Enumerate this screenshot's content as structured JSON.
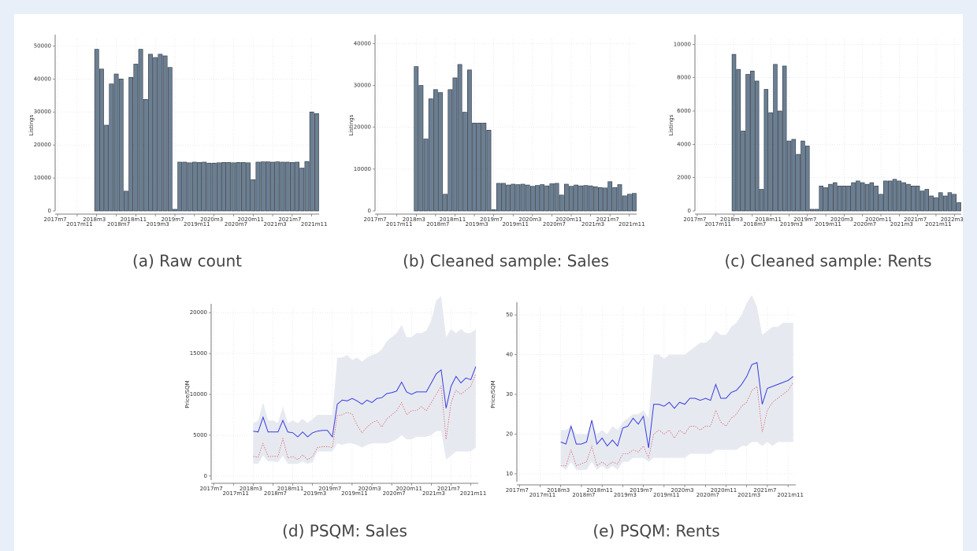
{
  "chart_data": [
    {
      "type": "bar",
      "caption": "(a) Raw count",
      "ylabel": "Listings",
      "color": "#6b7f93",
      "grid": true,
      "categories": [
        "2017m7",
        null,
        null,
        null,
        "2017m11",
        null,
        null,
        null,
        "2018m3",
        null,
        null,
        null,
        "2018m7",
        null,
        null,
        null,
        "2018m11",
        null,
        null,
        null,
        "2019m3",
        null,
        null,
        null,
        "2019m7",
        null,
        null,
        null,
        "2019m11",
        null,
        null,
        null,
        "2020m3",
        null,
        null,
        null,
        "2020m7",
        null,
        null,
        null,
        "2020m11",
        null,
        null,
        null,
        "2021m3",
        null,
        null,
        null,
        "2021m7",
        null,
        null,
        null,
        "2021m11",
        null
      ],
      "values": [
        null,
        null,
        null,
        null,
        null,
        null,
        null,
        null,
        49000,
        43000,
        26000,
        38500,
        41500,
        40000,
        6000,
        40500,
        44500,
        49000,
        33800,
        47500,
        46500,
        47500,
        47000,
        43500,
        500,
        14800,
        14800,
        14600,
        14800,
        14700,
        14800,
        14500,
        14500,
        14600,
        14700,
        14700,
        14600,
        14700,
        14700,
        14600,
        9500,
        14800,
        14900,
        14900,
        14800,
        14900,
        14800,
        14800,
        14700,
        14800,
        13000,
        15000,
        30000,
        29500
      ],
      "ylim": [
        0,
        52000
      ],
      "yticks": [
        0,
        10000,
        20000,
        30000,
        40000,
        50000
      ]
    },
    {
      "type": "bar",
      "caption": "(b) Cleaned sample: Sales",
      "ylabel": "Listings",
      "color": "#6b7f93",
      "grid": true,
      "categories": [
        "2017m7",
        null,
        null,
        null,
        "2017m11",
        null,
        null,
        null,
        "2018m3",
        null,
        null,
        null,
        "2018m7",
        null,
        null,
        null,
        "2018m11",
        null,
        null,
        null,
        "2019m3",
        null,
        null,
        null,
        "2019m7",
        null,
        null,
        null,
        "2019m11",
        null,
        null,
        null,
        "2020m3",
        null,
        null,
        null,
        "2020m7",
        null,
        null,
        null,
        "2020m11",
        null,
        null,
        null,
        "2021m3",
        null,
        null,
        null,
        "2021m7",
        null,
        null,
        null,
        "2021m11",
        null
      ],
      "values": [
        null,
        null,
        null,
        null,
        null,
        null,
        null,
        null,
        34500,
        30000,
        17200,
        26800,
        29000,
        28300,
        4000,
        29000,
        31800,
        35000,
        23600,
        33700,
        21000,
        21000,
        21000,
        19300,
        300,
        6600,
        6600,
        6200,
        6400,
        6300,
        6400,
        6200,
        5900,
        6100,
        6300,
        6000,
        6500,
        6600,
        3800,
        6400,
        5900,
        6200,
        6000,
        6100,
        6000,
        5800,
        5600,
        5500,
        7000,
        5600,
        6300,
        3600,
        4000,
        4200
      ],
      "ylim": [
        0,
        41000
      ],
      "yticks": [
        0,
        10000,
        20000,
        30000,
        40000
      ]
    },
    {
      "type": "bar",
      "caption": "(c) Cleaned sample: Rents",
      "ylabel": "Listings",
      "color": "#6b7f93",
      "grid": true,
      "categories": [
        "2017m7",
        null,
        null,
        null,
        "2017m11",
        null,
        null,
        null,
        "2018m3",
        null,
        null,
        null,
        "2018m7",
        null,
        null,
        null,
        "2018m11",
        null,
        null,
        null,
        "2019m3",
        null,
        null,
        null,
        "2019m7",
        null,
        null,
        null,
        "2019m11",
        null,
        null,
        null,
        "2020m3",
        null,
        null,
        null,
        "2020m7",
        null,
        null,
        null,
        "2020m11",
        null,
        null,
        null,
        "2021m3",
        null,
        null,
        null,
        "2021m7",
        null,
        null,
        null,
        "2021m11",
        null,
        null,
        null,
        "2022m3",
        null
      ],
      "values": [
        null,
        null,
        null,
        null,
        null,
        null,
        null,
        null,
        9400,
        8500,
        4800,
        8200,
        8400,
        7800,
        1300,
        7300,
        5900,
        8800,
        6000,
        8700,
        4200,
        4300,
        3400,
        4200,
        3900,
        100,
        100,
        1500,
        1400,
        1600,
        1700,
        1500,
        1500,
        1500,
        1700,
        1800,
        1700,
        1600,
        1700,
        1500,
        1000,
        1800,
        1800,
        1900,
        1800,
        1700,
        1600,
        1500,
        1500,
        1200,
        1300,
        900,
        800,
        1100,
        900,
        1100,
        1000,
        500
      ],
      "ylim": [
        0,
        10300
      ],
      "yticks": [
        0,
        2000,
        4000,
        6000,
        8000,
        10000
      ]
    },
    {
      "type": "line",
      "caption": "(d) PSQM: Sales",
      "ylabel": "Price/SQM",
      "grid": true,
      "categories": [
        "2017m7",
        null,
        null,
        null,
        "2017m11",
        null,
        null,
        null,
        "2018m3",
        null,
        null,
        null,
        "2018m7",
        null,
        null,
        null,
        "2018m11",
        null,
        null,
        null,
        "2019m3",
        null,
        null,
        null,
        "2019m7",
        null,
        null,
        null,
        "2019m11",
        null,
        null,
        null,
        "2020m3",
        null,
        null,
        null,
        "2020m7",
        null,
        null,
        null,
        "2020m11",
        null,
        null,
        null,
        "2021m3",
        null,
        null,
        null,
        "2021m7",
        null,
        null,
        null,
        "2021m11",
        null
      ],
      "band": {
        "color": "#e6eaf0",
        "upper": [
          null,
          null,
          null,
          null,
          null,
          null,
          null,
          null,
          6500,
          6800,
          9000,
          6800,
          6800,
          6500,
          8500,
          6500,
          6800,
          6500,
          7000,
          6500,
          7000,
          7500,
          7500,
          7500,
          7500,
          14500,
          14500,
          14800,
          14200,
          14500,
          14000,
          14500,
          14800,
          15000,
          15500,
          16500,
          17000,
          17500,
          18500,
          17000,
          17000,
          17500,
          17500,
          17800,
          19000,
          21500,
          22000,
          17000,
          18000,
          17500,
          18000,
          17500,
          17500,
          18000
        ],
        "lower": [
          null,
          null,
          null,
          null,
          null,
          null,
          null,
          null,
          1500,
          1500,
          2500,
          1800,
          1800,
          1700,
          2500,
          1500,
          1500,
          1500,
          1800,
          1500,
          1700,
          3000,
          3000,
          3000,
          3000,
          4000,
          3800,
          4000,
          4000,
          3800,
          3500,
          3800,
          4000,
          4000,
          4000,
          4000,
          4200,
          4500,
          5000,
          4500,
          4500,
          4800,
          4800,
          4800,
          5000,
          5500,
          5500,
          2000,
          2500,
          3000,
          3000,
          3000,
          3000,
          3500
        ]
      },
      "series": [
        {
          "color": "#3a3ae0",
          "dashed": false,
          "values": [
            null,
            null,
            null,
            null,
            null,
            null,
            null,
            null,
            5500,
            5400,
            7200,
            5400,
            5400,
            5400,
            6800,
            5400,
            5300,
            4800,
            5400,
            4800,
            5300,
            5500,
            5600,
            5600,
            4800,
            8800,
            9300,
            9200,
            9500,
            9200,
            8800,
            9300,
            9000,
            9500,
            9600,
            10100,
            10200,
            10400,
            11500,
            10300,
            10000,
            10300,
            10300,
            10300,
            11400,
            12500,
            13000,
            8300,
            11000,
            12200,
            11400,
            12000,
            11800,
            13400
          ]
        },
        {
          "color": "#e05060",
          "dashed": true,
          "values": [
            null,
            null,
            null,
            null,
            null,
            null,
            null,
            null,
            2400,
            2300,
            4000,
            2400,
            2400,
            2400,
            4600,
            2200,
            2400,
            2000,
            2600,
            2000,
            2400,
            3500,
            3600,
            3600,
            3500,
            7400,
            7500,
            7800,
            7600,
            6200,
            5300,
            6000,
            6500,
            6800,
            6000,
            7000,
            7500,
            8000,
            9000,
            7500,
            8000,
            8000,
            8500,
            8000,
            9000,
            10000,
            11000,
            4500,
            9000,
            10500,
            10000,
            10500,
            11000,
            12500
          ]
        }
      ],
      "ylim": [
        -500,
        20500
      ],
      "yticks": [
        0,
        5000,
        10000,
        15000,
        20000
      ]
    },
    {
      "type": "line",
      "caption": "(e) PSQM: Rents",
      "ylabel": "Price/SQM",
      "grid": true,
      "categories": [
        "2017m7",
        null,
        null,
        null,
        "2017m11",
        null,
        null,
        null,
        "2018m3",
        null,
        null,
        null,
        "2018m7",
        null,
        null,
        null,
        "2018m11",
        null,
        null,
        null,
        "2019m3",
        null,
        null,
        null,
        "2019m7",
        null,
        null,
        null,
        "2019m11",
        null,
        null,
        null,
        "2020m3",
        null,
        null,
        null,
        "2020m7",
        null,
        null,
        null,
        "2020m11",
        null,
        null,
        null,
        "2021m3",
        null,
        null,
        null,
        "2021m7",
        null,
        null,
        null,
        "2021m11",
        null
      ],
      "band": {
        "color": "#e6eaf0",
        "upper": [
          null,
          null,
          null,
          null,
          null,
          null,
          null,
          null,
          21,
          21,
          22,
          20,
          20,
          20,
          23,
          20,
          21,
          20,
          22,
          21,
          23,
          24,
          25,
          25,
          26,
          24,
          40,
          40,
          39,
          40,
          40,
          40,
          40,
          41,
          42,
          43,
          43,
          44,
          46,
          45,
          45,
          47,
          48,
          50,
          53,
          55,
          52,
          45,
          46,
          47,
          47,
          48,
          48,
          48
        ],
        "lower": [
          null,
          null,
          null,
          null,
          null,
          null,
          null,
          null,
          12,
          11,
          13,
          11,
          11,
          11,
          13,
          11,
          12,
          11,
          12,
          11,
          13,
          13,
          14,
          14,
          14,
          13,
          14,
          14,
          14,
          14,
          14,
          14,
          14,
          15,
          15,
          15,
          15,
          15,
          16,
          16,
          16,
          16,
          16,
          17,
          17,
          18,
          18,
          17,
          18,
          17,
          18,
          18,
          18,
          18
        ]
      },
      "series": [
        {
          "color": "#3a3ae0",
          "dashed": false,
          "values": [
            null,
            null,
            null,
            null,
            null,
            null,
            null,
            null,
            18,
            17.5,
            22,
            17.5,
            17.5,
            18,
            23.5,
            17.5,
            19,
            17,
            18.5,
            17,
            21.5,
            22,
            24,
            22.5,
            24.5,
            16.5,
            27.5,
            27.5,
            27,
            28,
            26.5,
            28,
            27.5,
            29,
            29,
            28.5,
            29,
            28.5,
            32.5,
            29,
            29,
            30.5,
            31,
            32.5,
            34.5,
            37.5,
            38,
            27.5,
            31.5,
            32,
            32.5,
            33,
            33.5,
            34.5
          ]
        },
        {
          "color": "#e05060",
          "dashed": true,
          "values": [
            null,
            null,
            null,
            null,
            null,
            null,
            null,
            null,
            12,
            12,
            16,
            12,
            12.5,
            13,
            17,
            12,
            13,
            12,
            13,
            12.5,
            15,
            15,
            16,
            15.5,
            17,
            14,
            20,
            21,
            20,
            21,
            19,
            21,
            20,
            22,
            22,
            21,
            22,
            22,
            26,
            23,
            22,
            24,
            25,
            27,
            28,
            31,
            32,
            20.5,
            26,
            28,
            29,
            30,
            31,
            33
          ]
        }
      ],
      "ylim": [
        8,
        52
      ],
      "yticks": [
        10,
        20,
        30,
        40,
        50
      ]
    }
  ]
}
